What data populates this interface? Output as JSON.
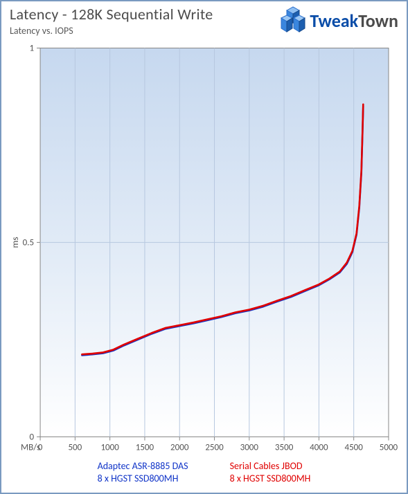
{
  "header": {
    "title": "Latency - 128K Sequential Write",
    "subtitle": "Latency vs. IOPS",
    "logo": {
      "main": "Tweak",
      "sub": "Town"
    }
  },
  "chart": {
    "type": "line",
    "background_gradient_top": "#c6d8ef",
    "background_gradient_mid": "#e3ecf7",
    "background_gradient_bot": "#ffffff",
    "grid_color": "#b7c8df",
    "axis_color": "#888888",
    "text_color": "#555555",
    "x": {
      "label": "MB/s",
      "label_fontsize": 13,
      "lim": [
        0,
        5000
      ],
      "tick_step": 500,
      "ticks": [
        0,
        500,
        1000,
        1500,
        2000,
        2500,
        3000,
        3500,
        4000,
        4500,
        5000
      ]
    },
    "y": {
      "label": "ms",
      "label_fontsize": 13,
      "lim": [
        0,
        1
      ],
      "tick_step": 0.5,
      "ticks": [
        0,
        0.5,
        1
      ]
    },
    "series": [
      {
        "name": "Adaptec ASR-8885 DAS",
        "sub": "8 x HGST SSD800MH",
        "color": "#1034c8",
        "line_width": 2.6,
        "points": [
          [
            600,
            0.21
          ],
          [
            750,
            0.212
          ],
          [
            900,
            0.215
          ],
          [
            1050,
            0.222
          ],
          [
            1200,
            0.235
          ],
          [
            1400,
            0.25
          ],
          [
            1600,
            0.265
          ],
          [
            1800,
            0.278
          ],
          [
            2000,
            0.285
          ],
          [
            2200,
            0.292
          ],
          [
            2400,
            0.3
          ],
          [
            2600,
            0.308
          ],
          [
            2800,
            0.318
          ],
          [
            3000,
            0.325
          ],
          [
            3200,
            0.335
          ],
          [
            3400,
            0.348
          ],
          [
            3600,
            0.36
          ],
          [
            3800,
            0.375
          ],
          [
            4000,
            0.39
          ],
          [
            4150,
            0.405
          ],
          [
            4300,
            0.423
          ],
          [
            4400,
            0.445
          ],
          [
            4480,
            0.475
          ],
          [
            4540,
            0.52
          ],
          [
            4580,
            0.59
          ],
          [
            4610,
            0.68
          ],
          [
            4625,
            0.78
          ],
          [
            4635,
            0.85
          ]
        ]
      },
      {
        "name": "Serial Cables JBOD",
        "sub": "8 x HGST SSD800MH",
        "color": "#e00000",
        "line_width": 2.6,
        "points": [
          [
            600,
            0.212
          ],
          [
            750,
            0.214
          ],
          [
            900,
            0.217
          ],
          [
            1050,
            0.224
          ],
          [
            1200,
            0.237
          ],
          [
            1400,
            0.252
          ],
          [
            1600,
            0.267
          ],
          [
            1800,
            0.28
          ],
          [
            2000,
            0.287
          ],
          [
            2200,
            0.294
          ],
          [
            2400,
            0.302
          ],
          [
            2600,
            0.31
          ],
          [
            2800,
            0.32
          ],
          [
            3000,
            0.327
          ],
          [
            3200,
            0.337
          ],
          [
            3400,
            0.35
          ],
          [
            3600,
            0.362
          ],
          [
            3800,
            0.377
          ],
          [
            4000,
            0.392
          ],
          [
            4150,
            0.407
          ],
          [
            4300,
            0.425
          ],
          [
            4400,
            0.448
          ],
          [
            4480,
            0.478
          ],
          [
            4540,
            0.523
          ],
          [
            4580,
            0.594
          ],
          [
            4610,
            0.684
          ],
          [
            4625,
            0.784
          ],
          [
            4635,
            0.855
          ]
        ]
      }
    ]
  },
  "legend": {
    "items": [
      {
        "line1": "Adaptec ASR-8885 DAS",
        "line2": "8 x HGST SSD800MH",
        "color": "#1034c8"
      },
      {
        "line1": "Serial Cables JBOD",
        "line2": "8 x HGST SSD800MH",
        "color": "#e00000"
      }
    ]
  }
}
